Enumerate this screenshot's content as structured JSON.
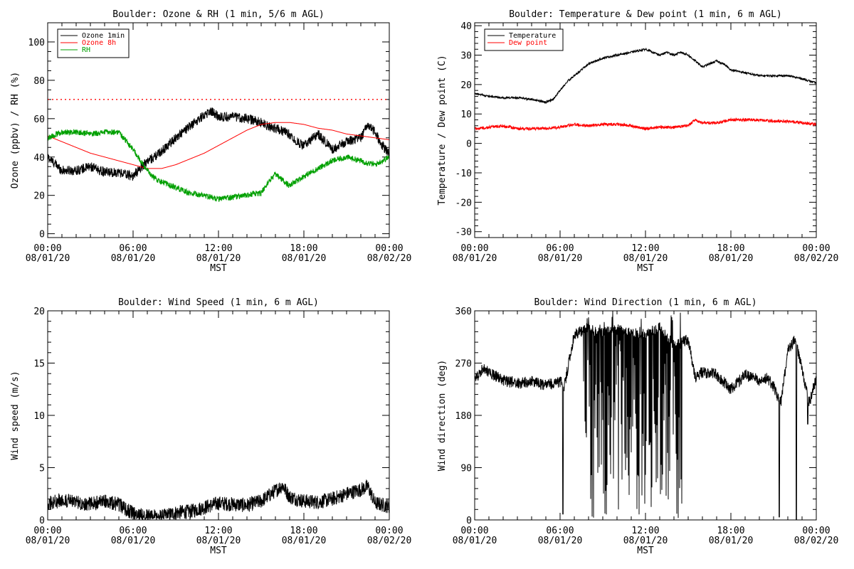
{
  "chart_data": [
    {
      "type": "line",
      "title": "Boulder: Ozone & RH (1 min, 5/6 m AGL)",
      "ylabel": "Ozone (ppbv) / RH (%)",
      "xlabel": "MST",
      "ylim": [
        -2,
        110
      ],
      "yticks": [
        0,
        20,
        40,
        60,
        80,
        100
      ],
      "xlim": [
        0,
        24
      ],
      "xticks": [
        0,
        6,
        12,
        18,
        24
      ],
      "xtick_labels": [
        [
          "00:00",
          "08/01/20"
        ],
        [
          "06:00",
          "08/01/20"
        ],
        [
          "12:00",
          "08/01/20"
        ],
        [
          "18:00",
          "08/01/20"
        ],
        [
          "00:00",
          "08/02/20"
        ]
      ],
      "legend": "top-left",
      "reference_line": {
        "y": 70,
        "color": "#ff0000",
        "style": "dotted"
      },
      "series": [
        {
          "name": "Ozone 1min",
          "color": "#000000",
          "noise": 2.5,
          "x": [
            0,
            1,
            2,
            3,
            4,
            5,
            6,
            6.5,
            7,
            7.5,
            8,
            9,
            10,
            11,
            11.5,
            12,
            13,
            14,
            15,
            15.5,
            16,
            17,
            17.5,
            18,
            19,
            20,
            21,
            22,
            22.5,
            23,
            23.5,
            24
          ],
          "y": [
            40,
            33,
            33,
            35,
            32,
            32,
            30,
            34,
            38,
            40,
            43,
            50,
            56,
            62,
            64,
            61,
            61,
            60,
            58,
            56,
            55,
            52,
            48,
            46,
            52,
            44,
            48,
            50,
            57,
            53,
            46,
            42
          ]
        },
        {
          "name": "Ozone 8h",
          "color": "#ff0000",
          "noise": 0,
          "x": [
            0,
            1,
            2,
            3,
            4,
            5,
            6,
            7,
            8,
            9,
            10,
            11,
            12,
            13,
            14,
            15,
            16,
            17,
            18,
            19,
            20,
            21,
            22,
            23,
            24
          ],
          "y": [
            51,
            48,
            45,
            42,
            40,
            38,
            36,
            34,
            34,
            36,
            39,
            42,
            46,
            50,
            54,
            57,
            58,
            58,
            57,
            55,
            54,
            52,
            51,
            50,
            49
          ]
        },
        {
          "name": "RH",
          "color": "#00a000",
          "noise": 1.5,
          "x": [
            0,
            1,
            2,
            3,
            4,
            5,
            6,
            6.5,
            7,
            7.5,
            8,
            9,
            10,
            11,
            12,
            13,
            14,
            14.5,
            15,
            15.5,
            16,
            17,
            18,
            19,
            20,
            21,
            22,
            23,
            24
          ],
          "y": [
            50,
            53,
            53,
            52,
            53,
            53,
            44,
            38,
            33,
            29,
            27,
            24,
            21,
            20,
            18,
            19,
            20,
            21,
            21,
            27,
            31,
            25,
            30,
            34,
            38,
            40,
            38,
            36,
            40
          ]
        }
      ]
    },
    {
      "type": "line",
      "title": "Boulder: Temperature & Dew point (1 min, 6 m AGL)",
      "ylabel": "Temperature / Dew point (C)",
      "xlabel": "MST",
      "ylim": [
        -32,
        41
      ],
      "yticks": [
        -30,
        -20,
        -10,
        0,
        10,
        20,
        30,
        40
      ],
      "xlim": [
        0,
        24
      ],
      "xticks": [
        0,
        6,
        12,
        18,
        24
      ],
      "xtick_labels": [
        [
          "00:00",
          "08/01/20"
        ],
        [
          "06:00",
          "08/01/20"
        ],
        [
          "12:00",
          "08/01/20"
        ],
        [
          "18:00",
          "08/01/20"
        ],
        [
          "00:00",
          "08/02/20"
        ]
      ],
      "legend": "top-left",
      "series": [
        {
          "name": "Temperature",
          "color": "#000000",
          "noise": 0.35,
          "x": [
            0,
            1,
            2,
            3,
            4,
            5,
            5.5,
            6,
            6.5,
            7,
            8,
            9,
            10,
            11,
            12,
            13,
            13.5,
            14,
            14.5,
            15,
            15.5,
            16,
            16.5,
            17,
            17.5,
            18,
            19,
            20,
            21,
            22,
            23,
            24
          ],
          "y": [
            17,
            16,
            15.5,
            15.5,
            15,
            14,
            15,
            18,
            21,
            23,
            27,
            29,
            30,
            31,
            32,
            30,
            31,
            30,
            31,
            30,
            28,
            26,
            27,
            28,
            27,
            25,
            24,
            23,
            23,
            23,
            22,
            20.5
          ]
        },
        {
          "name": "Dew point",
          "color": "#ff0000",
          "noise": 0.5,
          "x": [
            0,
            1,
            2,
            3,
            4,
            5,
            6,
            7,
            8,
            9,
            10,
            11,
            12,
            13,
            14,
            15,
            15.5,
            16,
            17,
            18,
            19,
            20,
            21,
            22,
            23,
            24
          ],
          "y": [
            5,
            5.5,
            6,
            5,
            5,
            5,
            5.5,
            6.5,
            6,
            6.5,
            6.5,
            6,
            5,
            5.5,
            5.5,
            6,
            8,
            7,
            7,
            8,
            8,
            8,
            7.5,
            7.5,
            7,
            6.5
          ]
        }
      ]
    },
    {
      "type": "line",
      "title": "Boulder: Wind Speed (1 min, 6 m AGL)",
      "ylabel": "Wind speed (m/s)",
      "xlabel": "MST",
      "ylim": [
        0,
        20
      ],
      "yticks": [
        0,
        5,
        10,
        15,
        20
      ],
      "xlim": [
        0,
        24
      ],
      "xticks": [
        0,
        6,
        12,
        18,
        24
      ],
      "xtick_labels": [
        [
          "00:00",
          "08/01/20"
        ],
        [
          "06:00",
          "08/01/20"
        ],
        [
          "12:00",
          "08/01/20"
        ],
        [
          "18:00",
          "08/01/20"
        ],
        [
          "00:00",
          "08/02/20"
        ]
      ],
      "series": [
        {
          "name": "",
          "color": "#000000",
          "noise": 0.7,
          "x": [
            0,
            1,
            2,
            3,
            4,
            5,
            6,
            6.5,
            7,
            8,
            9,
            10,
            11,
            12,
            13,
            14,
            15,
            16,
            16.5,
            17,
            18,
            19,
            20,
            21,
            22,
            22.5,
            23,
            24
          ],
          "y": [
            1.6,
            1.9,
            1.7,
            1.5,
            1.8,
            1.5,
            0.6,
            0.5,
            0.4,
            0.3,
            0.7,
            0.8,
            1.2,
            1.6,
            1.5,
            1.4,
            1.8,
            2.8,
            3.3,
            2.2,
            1.8,
            1.7,
            2.0,
            2.5,
            2.9,
            3.2,
            1.6,
            1.3
          ]
        }
      ]
    },
    {
      "type": "line",
      "title": "Boulder: Wind Direction (1 min, 6 m AGL)",
      "ylabel": "Wind direction (deg)",
      "xlabel": "MST",
      "ylim": [
        0,
        360
      ],
      "yticks": [
        0,
        90,
        180,
        270,
        360
      ],
      "xlim": [
        0,
        24
      ],
      "xticks": [
        0,
        6,
        12,
        18,
        24
      ],
      "xtick_labels": [
        [
          "00:00",
          "08/01/20"
        ],
        [
          "06:00",
          "08/01/20"
        ],
        [
          "12:00",
          "08/01/20"
        ],
        [
          "18:00",
          "08/01/20"
        ],
        [
          "00:00",
          "08/02/20"
        ]
      ],
      "series": [
        {
          "name": "",
          "color": "#000000",
          "noise": 10,
          "x": [
            0,
            0.5,
            1,
            2,
            3,
            4,
            5,
            6,
            6.3,
            7,
            8,
            9,
            10,
            11,
            12,
            13,
            14,
            15,
            15.5,
            16,
            17,
            18,
            19,
            20,
            20.5,
            21,
            21.5,
            22,
            22.5,
            23,
            23.5,
            24
          ],
          "y": [
            240,
            260,
            255,
            240,
            235,
            238,
            232,
            238,
            230,
            320,
            330,
            320,
            330,
            320,
            320,
            330,
            300,
            310,
            245,
            255,
            250,
            225,
            250,
            240,
            245,
            230,
            200,
            290,
            310,
            260,
            200,
            245
          ]
        }
      ],
      "chaotic_window": [
        7.6,
        14.6
      ],
      "dropouts": [
        [
          6.2,
          10
        ],
        [
          21.4,
          5
        ],
        [
          22.6,
          0
        ],
        [
          23.4,
          165
        ]
      ]
    }
  ]
}
